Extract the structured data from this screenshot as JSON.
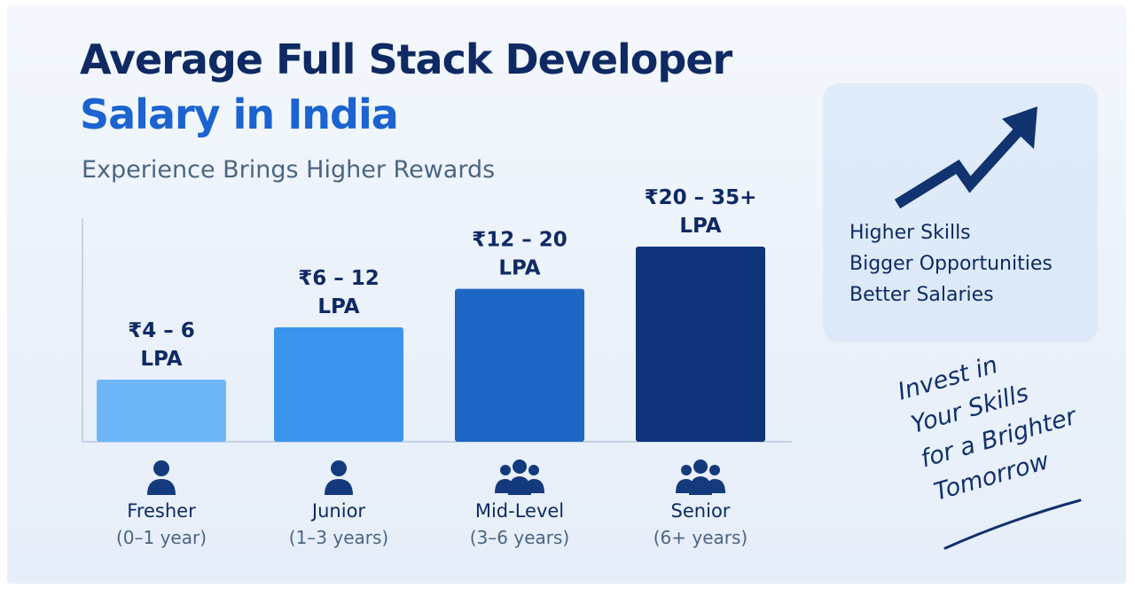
{
  "header": {
    "title_line1": "Average Full Stack Developer",
    "title_line2": "Salary in India",
    "subtitle": "Experience Brings Higher Rewards"
  },
  "chart_data": {
    "type": "bar",
    "title": "Average Full Stack Developer Salary in India",
    "subtitle": "Experience Brings Higher Rewards",
    "unit": "LPA",
    "categories": [
      "Fresher",
      "Junior",
      "Mid-Level",
      "Senior"
    ],
    "category_subtitles": [
      "(0–1 year)",
      "(1–3 years)",
      "(3–6 years)",
      "(6+ years)"
    ],
    "category_icons": [
      "person-icon",
      "person-icon",
      "group-icon",
      "group-icon"
    ],
    "ranges": [
      [
        4,
        6
      ],
      [
        6,
        12
      ],
      [
        12,
        20
      ],
      [
        20,
        35
      ]
    ],
    "values": [
      6,
      12,
      20,
      35
    ],
    "data_labels": [
      [
        "₹4 – 6",
        "LPA"
      ],
      [
        "₹6 – 12",
        "LPA"
      ],
      [
        "₹12 – 20",
        "LPA"
      ],
      [
        "₹20 – 35+",
        "LPA"
      ]
    ],
    "colors": [
      "#6db6f7",
      "#3a94ec",
      "#1f66c4",
      "#0f3479"
    ],
    "grid": false,
    "legend": "none",
    "y_axis_visible": false
  },
  "side_panel": {
    "icon": "trending-up-arrow-icon",
    "lines": [
      "Higher Skills",
      "Bigger Opportunities",
      "Better Salaries"
    ]
  },
  "tagline": {
    "lines": [
      "Invest in",
      "Your Skills",
      "for a Brighter",
      "Tomorrow"
    ]
  },
  "colors": {
    "title_dark": "#0f2a63",
    "title_blue": "#1b63d0",
    "subtitle": "#4b6583"
  }
}
